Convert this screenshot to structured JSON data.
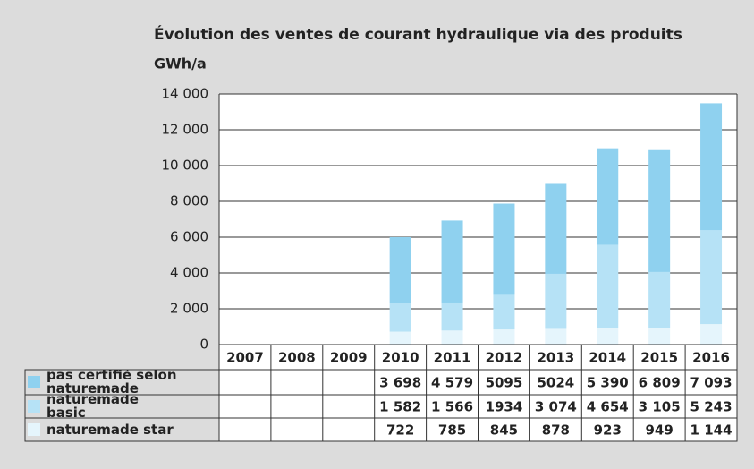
{
  "chart_data": {
    "type": "stacked_bar",
    "title": "Évolution des ventes de courant hydraulique via des produits",
    "y_label": "GWh/a",
    "categories": [
      "2007",
      "2008",
      "2009",
      "2010",
      "2011",
      "2012",
      "2013",
      "2014",
      "2015",
      "2016"
    ],
    "series": [
      {
        "name": "pas certifié selon naturemade",
        "color": "#8fd1ef",
        "values": [
          null,
          null,
          null,
          3698,
          4579,
          5095,
          5024,
          5390,
          6809,
          7093
        ],
        "value_labels": [
          null,
          null,
          null,
          "3 698",
          "4 579",
          "5095",
          "5024",
          "5 390",
          "6 809",
          "7 093"
        ]
      },
      {
        "name": "naturemade basic",
        "color": "#b6e2f6",
        "values": [
          null,
          null,
          null,
          1582,
          1566,
          1934,
          3074,
          4654,
          3105,
          5243
        ],
        "value_labels": [
          null,
          null,
          null,
          "1 582",
          "1 566",
          "1934",
          "3 074",
          "4 654",
          "3 105",
          "5 243"
        ]
      },
      {
        "name": "naturemade star",
        "color": "#e5f5fc",
        "values": [
          null,
          null,
          null,
          722,
          785,
          845,
          878,
          923,
          949,
          1144
        ],
        "value_labels": [
          null,
          null,
          null,
          "722",
          "785",
          "845",
          "878",
          "923",
          "949",
          "1 144"
        ]
      }
    ],
    "ylim": [
      0,
      14000
    ],
    "yticks": [
      0,
      {
        "value": 2000,
        "label": "2 000"
      },
      {
        "value": 4000,
        "label": "4 000"
      },
      {
        "value": 6000,
        "label": "6 000"
      },
      {
        "value": 8000,
        "label": "8 000"
      },
      {
        "value": 10000,
        "label": "10 000"
      },
      {
        "value": 12000,
        "label": "12 000"
      },
      {
        "value": 14000,
        "label": "14 000"
      }
    ],
    "grid": true
  }
}
